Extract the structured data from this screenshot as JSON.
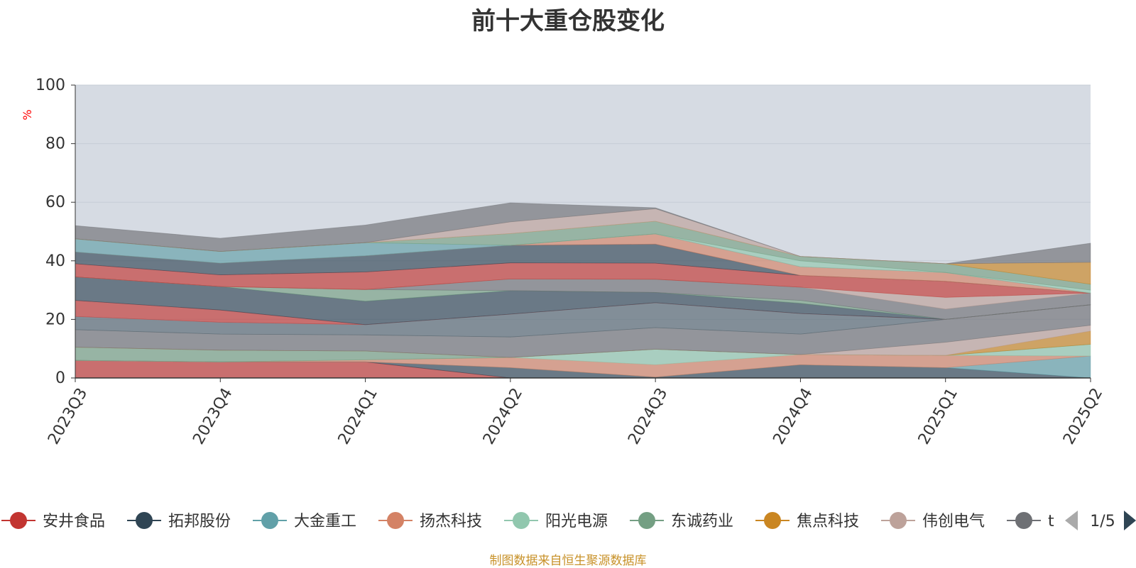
{
  "chart_data": {
    "type": "area",
    "title": "前十大重仓股变化",
    "ylabel": "%",
    "ylim": [
      0,
      100
    ],
    "yticks": [
      0,
      20,
      40,
      60,
      80,
      100
    ],
    "categories": [
      "2023Q3",
      "2023Q4",
      "2024Q1",
      "2024Q2",
      "2024Q3",
      "2024Q4",
      "2025Q1",
      "2025Q2"
    ],
    "grid": true,
    "series": [
      {
        "name": "安井食品",
        "color": "#c23531",
        "values": [
          6,
          5.5,
          5.5,
          0,
          0,
          0,
          0,
          0
        ]
      },
      {
        "name": "拓邦股份",
        "color": "#2f4554",
        "values": [
          0,
          0,
          0,
          3.5,
          0.3,
          4.5,
          3.5,
          0
        ]
      },
      {
        "name": "大金重工",
        "color": "#61a0a8",
        "values": [
          0,
          0,
          0,
          0,
          0,
          0,
          0,
          7.5
        ]
      },
      {
        "name": "扬杰科技",
        "color": "#d48265",
        "values": [
          0,
          0,
          0.7,
          3.5,
          4.2,
          3.5,
          4.2,
          0
        ]
      },
      {
        "name": "阳光电源",
        "color": "#91c7ae",
        "values": [
          0,
          0,
          0,
          0,
          5.3,
          0,
          0,
          4
        ]
      },
      {
        "name": "东诚药业",
        "color": "#749f83",
        "values": [
          4.5,
          4,
          3,
          0,
          0,
          0,
          0,
          0
        ]
      },
      {
        "name": "焦点科技",
        "color": "#ca8622",
        "values": [
          0,
          0,
          0,
          0,
          0,
          0,
          0,
          4.5
        ]
      },
      {
        "name": "伟创电气",
        "color": "#bda29a",
        "values": [
          0,
          0,
          0,
          0,
          0,
          0,
          4.5,
          2
        ]
      },
      {
        "name": "",
        "color": "#6e7074",
        "values": [
          6,
          5.5,
          5.5,
          7,
          7.4,
          7,
          7.8,
          7
        ]
      },
      {
        "name": "",
        "color": "#546570",
        "values": [
          4.5,
          4,
          3.5,
          7.8,
          8.5,
          7,
          0,
          0
        ]
      },
      {
        "name": "",
        "color": "#c4ccd3",
        "values": [
          0,
          0,
          0,
          0,
          0,
          0,
          0,
          0
        ]
      },
      {
        "name": "",
        "color": "#c23531",
        "values": [
          5.5,
          4.2,
          0,
          0,
          0,
          0,
          0,
          0
        ]
      },
      {
        "name": "",
        "color": "#2f4554",
        "values": [
          8,
          8,
          8,
          8,
          3.5,
          3.5,
          0,
          0
        ]
      },
      {
        "name": "",
        "color": "#749f83",
        "values": [
          0,
          0,
          4,
          0,
          0,
          1,
          0,
          0
        ]
      },
      {
        "name": "",
        "color": "#6e7074",
        "values": [
          0,
          0,
          0,
          4,
          4.5,
          4.5,
          3.5,
          4
        ]
      },
      {
        "name": "",
        "color": "#bda29a",
        "values": [
          0,
          0,
          0,
          0,
          0,
          0,
          4,
          0
        ]
      },
      {
        "name": "",
        "color": "#c23531",
        "values": [
          4.5,
          4,
          6,
          5.5,
          5.5,
          4,
          5.5,
          0
        ]
      },
      {
        "name": "",
        "color": "#2f4554",
        "values": [
          4,
          4,
          5.5,
          6,
          6.5,
          0,
          0,
          0
        ]
      },
      {
        "name": "",
        "color": "#d48265",
        "values": [
          0,
          0,
          0,
          0,
          3.5,
          3,
          3,
          0
        ]
      },
      {
        "name": "",
        "color": "#61a0a8",
        "values": [
          4.5,
          4,
          4.5,
          0,
          0,
          0,
          0,
          0
        ]
      },
      {
        "name": "",
        "color": "#91c7ae",
        "values": [
          0,
          0,
          0,
          0,
          0,
          2,
          0,
          1
        ]
      },
      {
        "name": "",
        "color": "#749f83",
        "values": [
          0,
          0,
          0,
          4,
          4.3,
          1.5,
          3,
          2
        ]
      },
      {
        "name": "",
        "color": "#ca8622",
        "values": [
          0,
          0,
          0,
          0,
          0,
          0,
          0,
          7.5
        ]
      },
      {
        "name": "",
        "color": "#bda29a",
        "values": [
          0,
          0,
          0,
          4,
          4.3,
          0,
          0,
          0
        ]
      },
      {
        "name": "",
        "color": "#6e7074",
        "values": [
          4.5,
          4.5,
          6,
          6.5,
          0.3,
          0,
          0,
          6.5
        ]
      }
    ]
  },
  "legend": {
    "items": [
      {
        "label": "安井食品",
        "color": "#c23531"
      },
      {
        "label": "拓邦股份",
        "color": "#2f4554"
      },
      {
        "label": "大金重工",
        "color": "#61a0a8"
      },
      {
        "label": "扬杰科技",
        "color": "#d48265"
      },
      {
        "label": "阳光电源",
        "color": "#91c7ae"
      },
      {
        "label": "东诚药业",
        "color": "#749f83"
      },
      {
        "label": "焦点科技",
        "color": "#ca8622"
      },
      {
        "label": "伟创电气",
        "color": "#bda29a"
      },
      {
        "label": "t",
        "color": "#6e7074"
      }
    ],
    "page": "1/5"
  },
  "footer": {
    "text": "制图数据来自恒生聚源数据库",
    "color": "#c8922a"
  },
  "colors": {
    "plot_bg": "#d6dbe3",
    "grid": "#c6ccd6",
    "axis": "#333333",
    "ylabel": "#ff0000",
    "pager_active": "#2f4554",
    "pager_inactive": "#aaaaaa"
  }
}
